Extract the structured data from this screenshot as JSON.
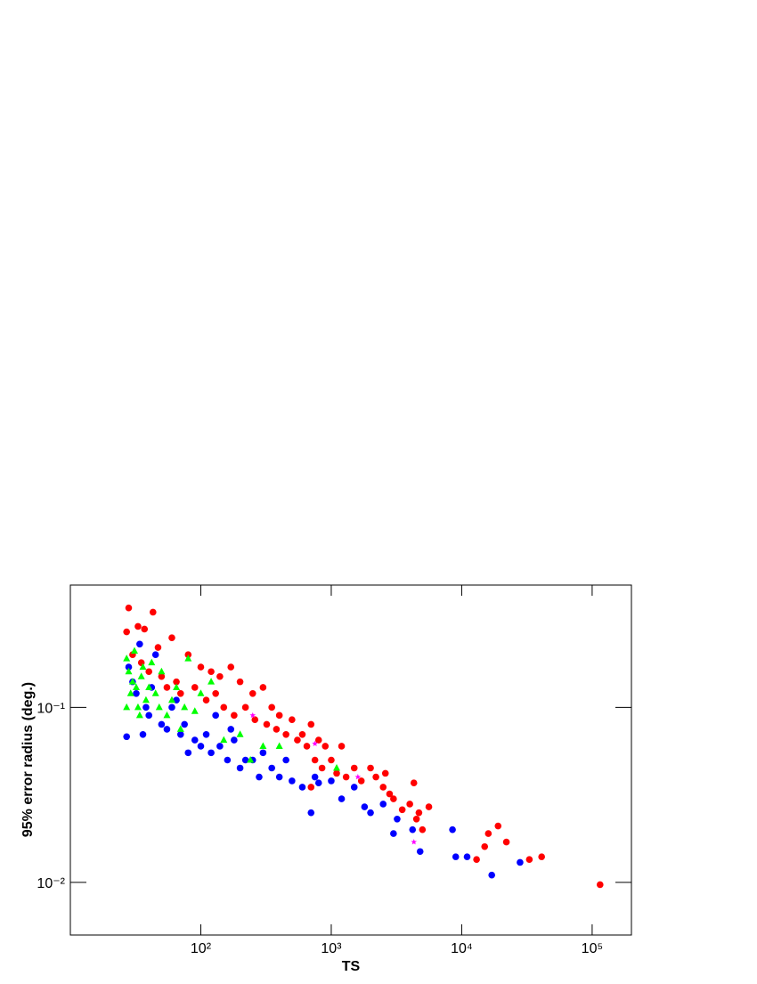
{
  "chart_data": {
    "type": "scatter",
    "xlabel": "TS",
    "ylabel": "95% error radius (deg.)",
    "xscale": "log",
    "yscale": "log",
    "xlim": [
      10,
      200000
    ],
    "ylim": [
      0.005,
      0.5
    ],
    "xticks": [
      {
        "value": 100,
        "label": "10²"
      },
      {
        "value": 1000,
        "label": "10³"
      },
      {
        "value": 10000,
        "label": "10⁴"
      },
      {
        "value": 100000,
        "label": "10⁵"
      }
    ],
    "yticks": [
      {
        "value": 0.01,
        "label": "10⁻²"
      },
      {
        "value": 0.1,
        "label": "10⁻¹"
      }
    ],
    "series": [
      {
        "color": "#ff0000",
        "marker": "circle",
        "x": [
          28,
          43,
          27,
          33,
          37,
          47,
          60,
          80,
          100,
          120,
          140,
          170,
          200,
          250,
          300,
          350,
          400,
          500,
          600,
          700,
          800,
          900,
          1000,
          1200,
          1500,
          2000,
          2500,
          3000,
          4000,
          4300,
          4700,
          5000,
          5600,
          16000,
          19000,
          15000,
          22000,
          13000,
          33000,
          41000,
          115000,
          30,
          35,
          40,
          50,
          55,
          65,
          70,
          90,
          110,
          130,
          150,
          180,
          220,
          260,
          320,
          380,
          450,
          550,
          650,
          750,
          850,
          1100,
          1300,
          1700,
          2200,
          2800,
          3500,
          4500,
          2600,
          700
        ],
        "values": [
          0.37,
          0.35,
          0.27,
          0.29,
          0.28,
          0.22,
          0.25,
          0.2,
          0.17,
          0.16,
          0.15,
          0.17,
          0.14,
          0.12,
          0.13,
          0.1,
          0.09,
          0.085,
          0.07,
          0.08,
          0.065,
          0.06,
          0.05,
          0.06,
          0.045,
          0.045,
          0.035,
          0.03,
          0.028,
          0.037,
          0.025,
          0.02,
          0.027,
          0.019,
          0.021,
          0.016,
          0.017,
          0.0135,
          0.0135,
          0.014,
          0.0097,
          0.2,
          0.18,
          0.16,
          0.15,
          0.13,
          0.14,
          0.12,
          0.13,
          0.11,
          0.12,
          0.1,
          0.09,
          0.1,
          0.085,
          0.08,
          0.075,
          0.07,
          0.065,
          0.06,
          0.05,
          0.045,
          0.042,
          0.04,
          0.038,
          0.04,
          0.032,
          0.026,
          0.023,
          0.042,
          0.035
        ]
      },
      {
        "color": "#0000ff",
        "marker": "circle",
        "x": [
          27,
          28,
          30,
          32,
          34,
          38,
          40,
          45,
          50,
          55,
          60,
          70,
          75,
          80,
          90,
          100,
          110,
          120,
          140,
          160,
          180,
          200,
          220,
          250,
          280,
          300,
          350,
          400,
          450,
          500,
          600,
          700,
          750,
          800,
          1000,
          1200,
          1500,
          1800,
          2000,
          2500,
          3000,
          3200,
          4200,
          4800,
          8500,
          9000,
          11000,
          17000,
          28000,
          36,
          42,
          65,
          130,
          170
        ],
        "values": [
          0.068,
          0.17,
          0.14,
          0.12,
          0.23,
          0.1,
          0.09,
          0.2,
          0.08,
          0.075,
          0.1,
          0.07,
          0.08,
          0.055,
          0.065,
          0.06,
          0.07,
          0.055,
          0.06,
          0.05,
          0.065,
          0.045,
          0.05,
          0.05,
          0.04,
          0.055,
          0.045,
          0.04,
          0.05,
          0.038,
          0.035,
          0.025,
          0.04,
          0.037,
          0.038,
          0.03,
          0.035,
          0.027,
          0.025,
          0.028,
          0.019,
          0.023,
          0.02,
          0.015,
          0.02,
          0.014,
          0.014,
          0.011,
          0.013,
          0.07,
          0.13,
          0.11,
          0.09,
          0.075
        ]
      },
      {
        "color": "#00ff00",
        "marker": "triangle",
        "x": [
          27,
          28,
          29,
          30,
          31,
          32,
          33,
          35,
          36,
          38,
          40,
          42,
          45,
          48,
          50,
          55,
          60,
          65,
          70,
          75,
          80,
          90,
          100,
          120,
          150,
          200,
          240,
          300,
          400,
          1100,
          27,
          34
        ],
        "values": [
          0.19,
          0.16,
          0.12,
          0.14,
          0.21,
          0.13,
          0.1,
          0.15,
          0.17,
          0.11,
          0.13,
          0.18,
          0.12,
          0.1,
          0.16,
          0.09,
          0.11,
          0.13,
          0.075,
          0.1,
          0.19,
          0.095,
          0.12,
          0.14,
          0.065,
          0.07,
          0.05,
          0.06,
          0.06,
          0.045,
          0.1,
          0.09
        ]
      },
      {
        "color": "#ff00ff",
        "marker": "star",
        "x": [
          750,
          4300,
          250,
          1600
        ],
        "values": [
          0.062,
          0.017,
          0.09,
          0.04
        ]
      }
    ]
  }
}
